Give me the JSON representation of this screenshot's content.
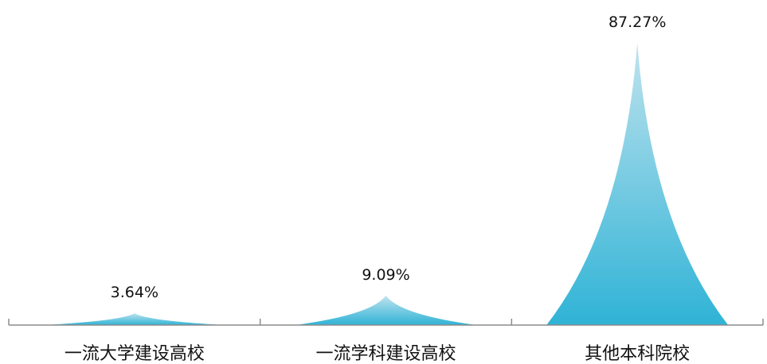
{
  "chart_data": {
    "type": "bar",
    "bar_shape": "triangle",
    "categories": [
      "一流大学建设高校",
      "一流学科建设高校",
      "其他本科院校"
    ],
    "values": [
      3.64,
      9.09,
      87.27
    ],
    "value_labels": [
      "3.64%",
      "9.09%",
      "87.27%"
    ],
    "unit": "%",
    "ylim": [
      0,
      87.27
    ],
    "grid": false,
    "legend": "none",
    "colors": {
      "fill_top": "#bfe3ee",
      "fill_bottom": "#2fb3d6",
      "axis": "#8c8c8c",
      "text": "#111111"
    }
  }
}
